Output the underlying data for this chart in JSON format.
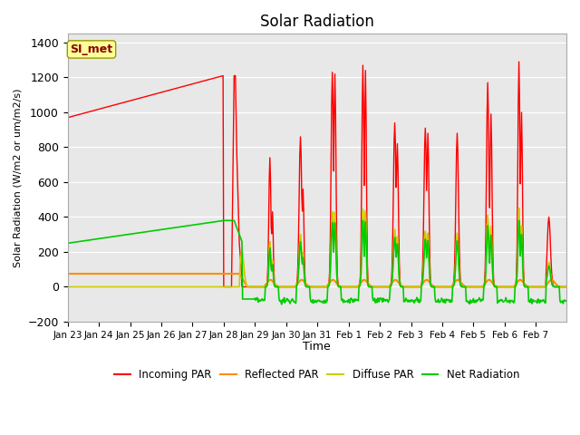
{
  "title": "Solar Radiation",
  "xlabel": "Time",
  "ylabel": "Solar Radiation (W/m2 or um/m2/s)",
  "ylim": [
    -200,
    1450
  ],
  "background_color": "#e8e8e8",
  "annotation_text": "SI_met",
  "annotation_color": "#8b0000",
  "annotation_bg": "#ffff99",
  "legend_colors": [
    "#ff0000",
    "#ff8c00",
    "#cccc00",
    "#00cc00"
  ],
  "legend_labels": [
    "Incoming PAR",
    "Reflected PAR",
    "Diffuse PAR",
    "Net Radiation"
  ],
  "tick_labels": [
    "Jan 23",
    "Jan 24",
    "Jan 25",
    "Jan 26",
    "Jan 27",
    "Jan 28",
    "Jan 29",
    "Jan 30",
    "Jan 31",
    "Feb 1",
    "Feb 2",
    "Feb 3",
    "Feb 4",
    "Feb 5",
    "Feb 6",
    "Feb 7"
  ],
  "tick_day_indices": [
    0,
    1,
    2,
    3,
    4,
    5,
    6,
    7,
    8,
    9,
    10,
    11,
    12,
    13,
    14,
    15
  ]
}
